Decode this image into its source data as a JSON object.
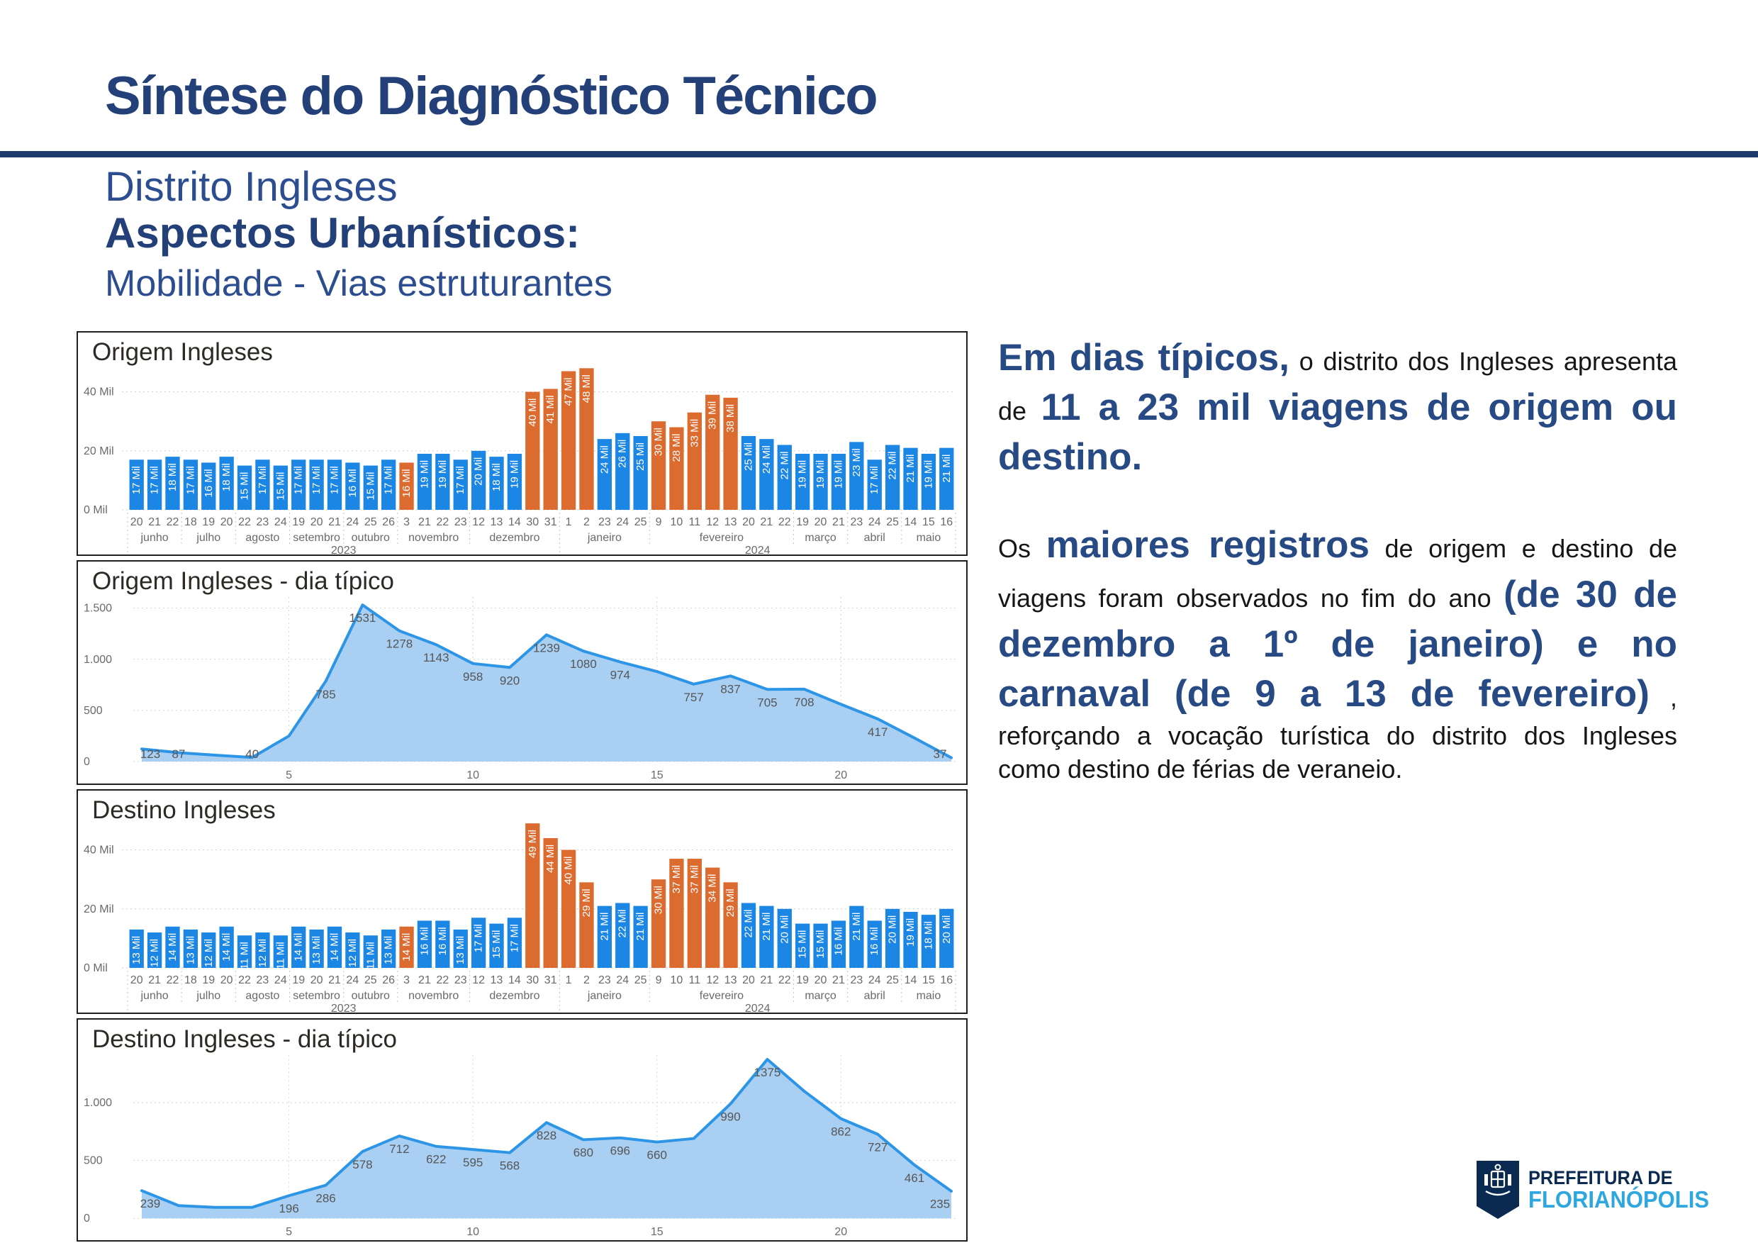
{
  "page": {
    "title": "Síntese do Diagnóstico Técnico",
    "subtitle1": "Distrito Ingleses",
    "subtitle2": "Aspectos Urbanísticos:",
    "subtitle3": "Mobilidade - Vias estruturantes"
  },
  "colors": {
    "navy": "#234178",
    "rule": "#1d3a6d",
    "subtitle_blue": "#2c4d8f",
    "bar_blue": "#1b86e3",
    "bar_orange": "#dc6b2f",
    "area_line": "#2d95e6",
    "area_fill": "#a9cff2",
    "axis_text": "#6a6a6a",
    "logo_navy": "#0a2a52",
    "logo_cyan": "#2ea7e0"
  },
  "sidebar": {
    "paragraphs": [
      {
        "runs": [
          [
            "big",
            "Em dias típicos,"
          ],
          [
            "small",
            " o distrito dos Ingleses apresenta de "
          ],
          [
            "big",
            "11 a 23 mil viagens de origem ou destino."
          ]
        ]
      },
      {
        "runs": [
          [
            "small",
            "Os "
          ],
          [
            "big",
            "maiores registros"
          ],
          [
            "small",
            " de origem e destino de viagens foram observados no fim do ano "
          ],
          [
            "big",
            "(de 30 de dezembro a 1º de janeiro) e no carnaval (de 9 a 13 de fevereiro)"
          ],
          [
            "small",
            " , reforçando a vocação turística do distrito dos Ingleses como destino de férias de veraneio."
          ]
        ]
      }
    ]
  },
  "logo": {
    "line1": "PREFEITURA DE",
    "line2": "FLORIANÓPOLIS"
  },
  "chart_data": [
    {
      "type": "bar",
      "title": "Origem Ingleses",
      "unit_suffix": " Mil",
      "ymax": 50,
      "y_ticks": [
        {
          "v": 0,
          "label": "0 Mil"
        },
        {
          "v": 20,
          "label": "20 Mil"
        },
        {
          "v": 40,
          "label": "40 Mil"
        }
      ],
      "legend_note": "orange bars = holiday/carnival peaks",
      "years": [
        {
          "year": "2023",
          "months": [
            {
              "month": "junho",
              "bars": [
                [
                  "20",
                  17,
                  0
                ],
                [
                  "21",
                  17,
                  0
                ],
                [
                  "22",
                  18,
                  0
                ]
              ]
            },
            {
              "month": "julho",
              "bars": [
                [
                  "18",
                  17,
                  0
                ],
                [
                  "19",
                  16,
                  0
                ],
                [
                  "20",
                  18,
                  0
                ]
              ]
            },
            {
              "month": "agosto",
              "bars": [
                [
                  "22",
                  15,
                  0
                ],
                [
                  "23",
                  17,
                  0
                ],
                [
                  "24",
                  15,
                  0
                ]
              ]
            },
            {
              "month": "setembro",
              "bars": [
                [
                  "19",
                  17,
                  0
                ],
                [
                  "20",
                  17,
                  0
                ],
                [
                  "21",
                  17,
                  0
                ]
              ]
            },
            {
              "month": "outubro",
              "bars": [
                [
                  "24",
                  16,
                  0
                ],
                [
                  "25",
                  15,
                  0
                ],
                [
                  "26",
                  17,
                  0
                ]
              ]
            },
            {
              "month": "novembro",
              "bars": [
                [
                  "3",
                  16,
                  1
                ],
                [
                  "21",
                  19,
                  0
                ],
                [
                  "22",
                  19,
                  0
                ],
                [
                  "23",
                  17,
                  0
                ]
              ]
            },
            {
              "month": "dezembro",
              "bars": [
                [
                  "12",
                  20,
                  0
                ],
                [
                  "13",
                  18,
                  0
                ],
                [
                  "14",
                  19,
                  0
                ],
                [
                  "30",
                  40,
                  1
                ],
                [
                  "31",
                  41,
                  1
                ]
              ]
            }
          ]
        },
        {
          "year": "2024",
          "months": [
            {
              "month": "janeiro",
              "bars": [
                [
                  "1",
                  47,
                  1
                ],
                [
                  "2",
                  48,
                  1
                ],
                [
                  "23",
                  24,
                  0
                ],
                [
                  "24",
                  26,
                  0
                ],
                [
                  "25",
                  25,
                  0
                ]
              ]
            },
            {
              "month": "fevereiro",
              "bars": [
                [
                  "9",
                  30,
                  1
                ],
                [
                  "10",
                  28,
                  1
                ],
                [
                  "11",
                  33,
                  1
                ],
                [
                  "12",
                  39,
                  1
                ],
                [
                  "13",
                  38,
                  1
                ],
                [
                  "20",
                  25,
                  0
                ],
                [
                  "21",
                  24,
                  0
                ],
                [
                  "22",
                  22,
                  0
                ]
              ]
            },
            {
              "month": "março",
              "bars": [
                [
                  "19",
                  19,
                  0
                ],
                [
                  "20",
                  19,
                  0
                ],
                [
                  "21",
                  19,
                  0
                ]
              ]
            },
            {
              "month": "abril",
              "bars": [
                [
                  "23",
                  23,
                  0
                ],
                [
                  "24",
                  17,
                  0
                ],
                [
                  "25",
                  22,
                  0
                ]
              ]
            },
            {
              "month": "maio",
              "bars": [
                [
                  "14",
                  21,
                  0
                ],
                [
                  "15",
                  19,
                  0
                ],
                [
                  "16",
                  21,
                  0
                ]
              ]
            }
          ]
        }
      ]
    },
    {
      "type": "area",
      "title": "Origem Ingleses - dia típico",
      "ymax": 1650,
      "y_ticks": [
        {
          "v": 0,
          "label": "0"
        },
        {
          "v": 500,
          "label": "500"
        },
        {
          "v": 1000,
          "label": "1.000"
        },
        {
          "v": 1500,
          "label": "1.500"
        }
      ],
      "x_ticks": [
        5,
        10,
        15,
        20
      ],
      "points": [
        [
          123,
          "123"
        ],
        [
          87,
          "87"
        ],
        [
          62,
          null
        ],
        [
          40,
          "40"
        ],
        [
          250,
          null
        ],
        [
          785,
          "785"
        ],
        [
          1531,
          "1531"
        ],
        [
          1278,
          "1278"
        ],
        [
          1143,
          "1143"
        ],
        [
          958,
          "958"
        ],
        [
          920,
          "920"
        ],
        [
          1239,
          "1239"
        ],
        [
          1080,
          "1080"
        ],
        [
          974,
          "974"
        ],
        [
          880,
          null
        ],
        [
          757,
          "757"
        ],
        [
          837,
          "837"
        ],
        [
          705,
          "705"
        ],
        [
          708,
          "708"
        ],
        [
          560,
          null
        ],
        [
          417,
          "417"
        ],
        [
          230,
          null
        ],
        [
          37,
          "37"
        ]
      ]
    },
    {
      "type": "bar",
      "title": "Destino Ingleses",
      "unit_suffix": " Mil",
      "ymax": 50,
      "y_ticks": [
        {
          "v": 0,
          "label": "0 Mil"
        },
        {
          "v": 20,
          "label": "20 Mil"
        },
        {
          "v": 40,
          "label": "40 Mil"
        }
      ],
      "legend_note": "orange bars = holiday/carnival peaks",
      "years": [
        {
          "year": "2023",
          "months": [
            {
              "month": "junho",
              "bars": [
                [
                  "20",
                  13,
                  0
                ],
                [
                  "21",
                  12,
                  0
                ],
                [
                  "22",
                  14,
                  0
                ]
              ]
            },
            {
              "month": "julho",
              "bars": [
                [
                  "18",
                  13,
                  0
                ],
                [
                  "19",
                  12,
                  0
                ],
                [
                  "20",
                  14,
                  0
                ]
              ]
            },
            {
              "month": "agosto",
              "bars": [
                [
                  "22",
                  11,
                  0
                ],
                [
                  "23",
                  12,
                  0
                ],
                [
                  "24",
                  11,
                  0
                ]
              ]
            },
            {
              "month": "setembro",
              "bars": [
                [
                  "19",
                  14,
                  0
                ],
                [
                  "20",
                  13,
                  0
                ],
                [
                  "21",
                  14,
                  0
                ]
              ]
            },
            {
              "month": "outubro",
              "bars": [
                [
                  "24",
                  12,
                  0
                ],
                [
                  "25",
                  11,
                  0
                ],
                [
                  "26",
                  13,
                  0
                ]
              ]
            },
            {
              "month": "novembro",
              "bars": [
                [
                  "3",
                  14,
                  1
                ],
                [
                  "21",
                  16,
                  0
                ],
                [
                  "22",
                  16,
                  0
                ],
                [
                  "23",
                  13,
                  0
                ]
              ]
            },
            {
              "month": "dezembro",
              "bars": [
                [
                  "12",
                  17,
                  0
                ],
                [
                  "13",
                  15,
                  0
                ],
                [
                  "14",
                  17,
                  0
                ],
                [
                  "30",
                  49,
                  1
                ],
                [
                  "31",
                  44,
                  1
                ]
              ]
            }
          ]
        },
        {
          "year": "2024",
          "months": [
            {
              "month": "janeiro",
              "bars": [
                [
                  "1",
                  40,
                  1
                ],
                [
                  "2",
                  29,
                  1
                ],
                [
                  "23",
                  21,
                  0
                ],
                [
                  "24",
                  22,
                  0
                ],
                [
                  "25",
                  21,
                  0
                ]
              ]
            },
            {
              "month": "fevereiro",
              "bars": [
                [
                  "9",
                  30,
                  1
                ],
                [
                  "10",
                  37,
                  1
                ],
                [
                  "11",
                  37,
                  1
                ],
                [
                  "12",
                  34,
                  1
                ],
                [
                  "13",
                  29,
                  1
                ],
                [
                  "20",
                  22,
                  0
                ],
                [
                  "21",
                  21,
                  0
                ],
                [
                  "22",
                  20,
                  0
                ]
              ]
            },
            {
              "month": "março",
              "bars": [
                [
                  "19",
                  15,
                  0
                ],
                [
                  "20",
                  15,
                  0
                ],
                [
                  "21",
                  16,
                  0
                ]
              ]
            },
            {
              "month": "abril",
              "bars": [
                [
                  "23",
                  21,
                  0
                ],
                [
                  "24",
                  16,
                  0
                ],
                [
                  "25",
                  20,
                  0
                ]
              ]
            },
            {
              "month": "maio",
              "bars": [
                [
                  "14",
                  19,
                  0
                ],
                [
                  "15",
                  18,
                  0
                ],
                [
                  "16",
                  20,
                  0
                ]
              ]
            }
          ]
        }
      ]
    },
    {
      "type": "area",
      "title": "Destino Ingleses - dia típico",
      "ymax": 1450,
      "y_ticks": [
        {
          "v": 0,
          "label": "0"
        },
        {
          "v": 500,
          "label": "500"
        },
        {
          "v": 1000,
          "label": "1.000"
        }
      ],
      "x_ticks": [
        5,
        10,
        15,
        20
      ],
      "points": [
        [
          239,
          "239"
        ],
        [
          110,
          null
        ],
        [
          95,
          null
        ],
        [
          95,
          null
        ],
        [
          196,
          "196"
        ],
        [
          286,
          "286"
        ],
        [
          578,
          "578"
        ],
        [
          712,
          "712"
        ],
        [
          622,
          "622"
        ],
        [
          595,
          "595"
        ],
        [
          568,
          "568"
        ],
        [
          828,
          "828"
        ],
        [
          680,
          "680"
        ],
        [
          696,
          "696"
        ],
        [
          660,
          "660"
        ],
        [
          690,
          null
        ],
        [
          990,
          "990"
        ],
        [
          1375,
          "1375"
        ],
        [
          1100,
          null
        ],
        [
          862,
          "862"
        ],
        [
          727,
          "727"
        ],
        [
          461,
          "461"
        ],
        [
          235,
          "235"
        ]
      ]
    }
  ]
}
